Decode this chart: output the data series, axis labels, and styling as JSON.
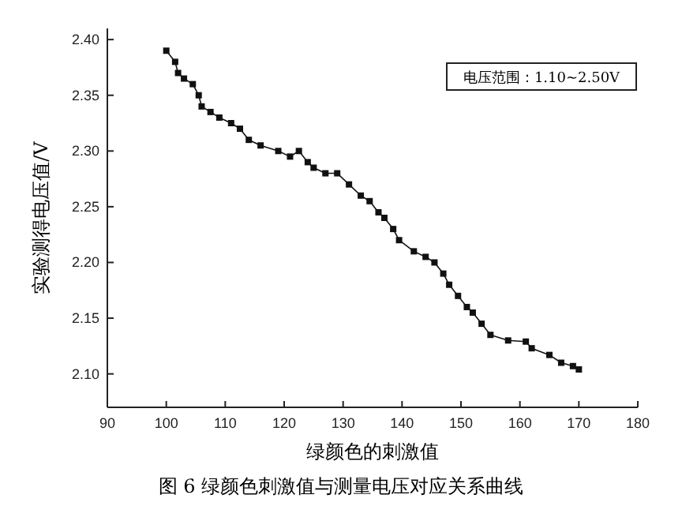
{
  "chart_data": {
    "type": "line",
    "xlabel": "绿颜色的刺激值",
    "ylabel": "实验测得电压值/V",
    "annotations": [
      "电压范围：1.10~2.50V",
      "图 6 绿颜色刺激值与测量电压对应关系曲线"
    ],
    "xlim": [
      90,
      180
    ],
    "xticks": [
      90,
      100,
      110,
      120,
      130,
      140,
      150,
      160,
      170,
      180
    ],
    "ylim": [
      2.07,
      2.41
    ],
    "yticks": [
      {
        "value": 2.1,
        "label": "2.10"
      },
      {
        "value": 2.15,
        "label": "2.15"
      },
      {
        "value": 2.2,
        "label": "2.20"
      },
      {
        "value": 2.25,
        "label": "2.25"
      },
      {
        "value": 2.3,
        "label": "2.30"
      },
      {
        "value": 2.35,
        "label": "2.35"
      },
      {
        "value": 2.4,
        "label": "2.40"
      }
    ],
    "marker": "square",
    "grid": false,
    "series": [
      {
        "color": "#111111",
        "x": [
          100,
          101.5,
          102,
          103,
          104.5,
          105.5,
          106,
          107.5,
          109,
          111,
          112.5,
          114,
          116,
          119,
          121,
          122.5,
          124,
          125,
          127,
          129,
          131,
          133,
          134.5,
          136,
          137,
          138.5,
          139.5,
          142,
          144,
          145.5,
          147,
          148,
          149.5,
          151,
          152,
          153.5,
          155,
          158,
          161,
          162,
          165,
          167,
          169,
          170
        ],
        "values": [
          2.39,
          2.38,
          2.37,
          2.365,
          2.36,
          2.35,
          2.34,
          2.335,
          2.33,
          2.325,
          2.32,
          2.31,
          2.305,
          2.3,
          2.295,
          2.3,
          2.29,
          2.285,
          2.28,
          2.28,
          2.27,
          2.26,
          2.255,
          2.245,
          2.24,
          2.23,
          2.22,
          2.21,
          2.205,
          2.2,
          2.19,
          2.18,
          2.17,
          2.16,
          2.155,
          2.145,
          2.135,
          2.13,
          2.129,
          2.123,
          2.117,
          2.11,
          2.107,
          2.104
        ]
      }
    ]
  }
}
